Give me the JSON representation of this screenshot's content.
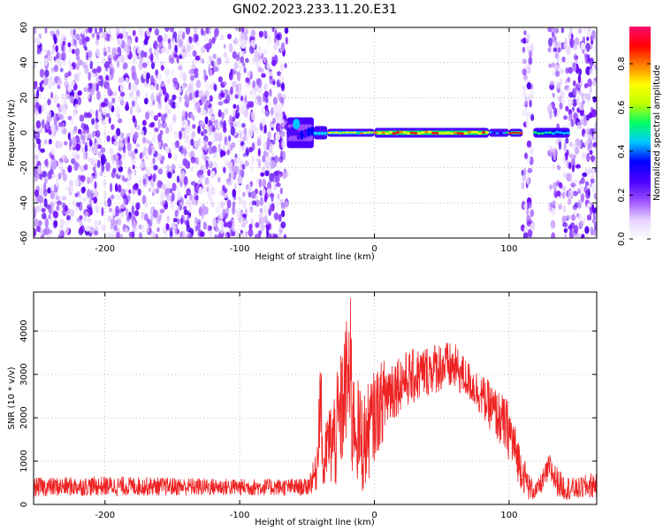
{
  "title": "GN02.2023.233.11.20.E31",
  "chart_data": [
    {
      "type": "heatmap",
      "xlabel": "Height of straight line (km)",
      "ylabel": "Frequency (Hz)",
      "xlim": [
        -253,
        165
      ],
      "ylim": [
        -60,
        60
      ],
      "x_ticks": [
        -200,
        -100,
        0,
        100
      ],
      "y_ticks": [
        60,
        40,
        20,
        0,
        -20,
        -40,
        -60
      ],
      "colorbar": {
        "label": "Normalized spectral amplitude",
        "range": [
          0,
          0.97
        ],
        "ticks": [
          0.0,
          0.2,
          0.4,
          0.6,
          0.8
        ],
        "colormap": [
          "#ffffff",
          "#e6d2ff",
          "#9a4dff",
          "#4b00ff",
          "#0000ff",
          "#00c8ff",
          "#00ff66",
          "#bfff00",
          "#ffff00",
          "#ff8000",
          "#ff0000",
          "#ff0a6e"
        ]
      },
      "noise_regions_km": [
        [
          -253,
          -65
        ],
        [
          110,
          118
        ],
        [
          130,
          165
        ]
      ],
      "signal_band": {
        "center_hz": 0,
        "segments": [
          {
            "x": [
              -65,
              -45
            ],
            "halfwidth_hz": 8,
            "amplitude": 0.35
          },
          {
            "x": [
              -45,
              -35
            ],
            "halfwidth_hz": 3,
            "amplitude": 0.45
          },
          {
            "x": [
              -35,
              0
            ],
            "halfwidth_hz": 1.5,
            "amplitude": 0.75
          },
          {
            "x": [
              0,
              85
            ],
            "halfwidth_hz": 2,
            "amplitude": 0.9
          },
          {
            "x": [
              85,
              100
            ],
            "halfwidth_hz": 1.5,
            "amplitude": 0.5
          },
          {
            "x": [
              100,
              110
            ],
            "halfwidth_hz": 1.5,
            "amplitude": 0.9
          },
          {
            "x": [
              118,
              145
            ],
            "halfwidth_hz": 2,
            "amplitude": 0.55
          }
        ]
      },
      "grid": true
    },
    {
      "type": "line",
      "xlabel": "Height of straight line (km)",
      "ylabel": "SNR (10 * v/v)",
      "xlim": [
        -253,
        165
      ],
      "ylim": [
        0,
        4900
      ],
      "x_ticks": [
        -200,
        -100,
        0,
        100
      ],
      "y_ticks": [
        0,
        1000,
        2000,
        3000,
        4000
      ],
      "series": [
        {
          "color": "#ee2222",
          "envelope": {
            "x": [
              -253,
              -200,
              -100,
              -50,
              -43,
              -40,
              -38,
              -35,
              -30,
              -25,
              -20,
              -17,
              -15,
              -12,
              -8,
              0,
              10,
              20,
              30,
              40,
              50,
              60,
              70,
              80,
              90,
              100,
              105,
              110,
              115,
              120,
              125,
              130,
              135,
              140,
              150,
              165
            ],
            "lo": [
              180,
              200,
              200,
              200,
              300,
              1500,
              100,
              600,
              200,
              600,
              1500,
              100,
              1000,
              300,
              200,
              1000,
              1700,
              2200,
              2300,
              2500,
              2600,
              2600,
              2400,
              2000,
              1500,
              1000,
              600,
              300,
              80,
              100,
              300,
              500,
              200,
              100,
              100,
              150
            ],
            "hi": [
              620,
              650,
              600,
              600,
              1200,
              3900,
              1200,
              2200,
              2700,
              3500,
              4500,
              4900,
              2800,
              2900,
              2600,
              3100,
              3500,
              3500,
              3600,
              3700,
              3800,
              3700,
              3300,
              3000,
              2700,
              2400,
              1800,
              1200,
              700,
              500,
              800,
              1200,
              900,
              700,
              600,
              800
            ]
          }
        }
      ],
      "grid": true
    }
  ]
}
